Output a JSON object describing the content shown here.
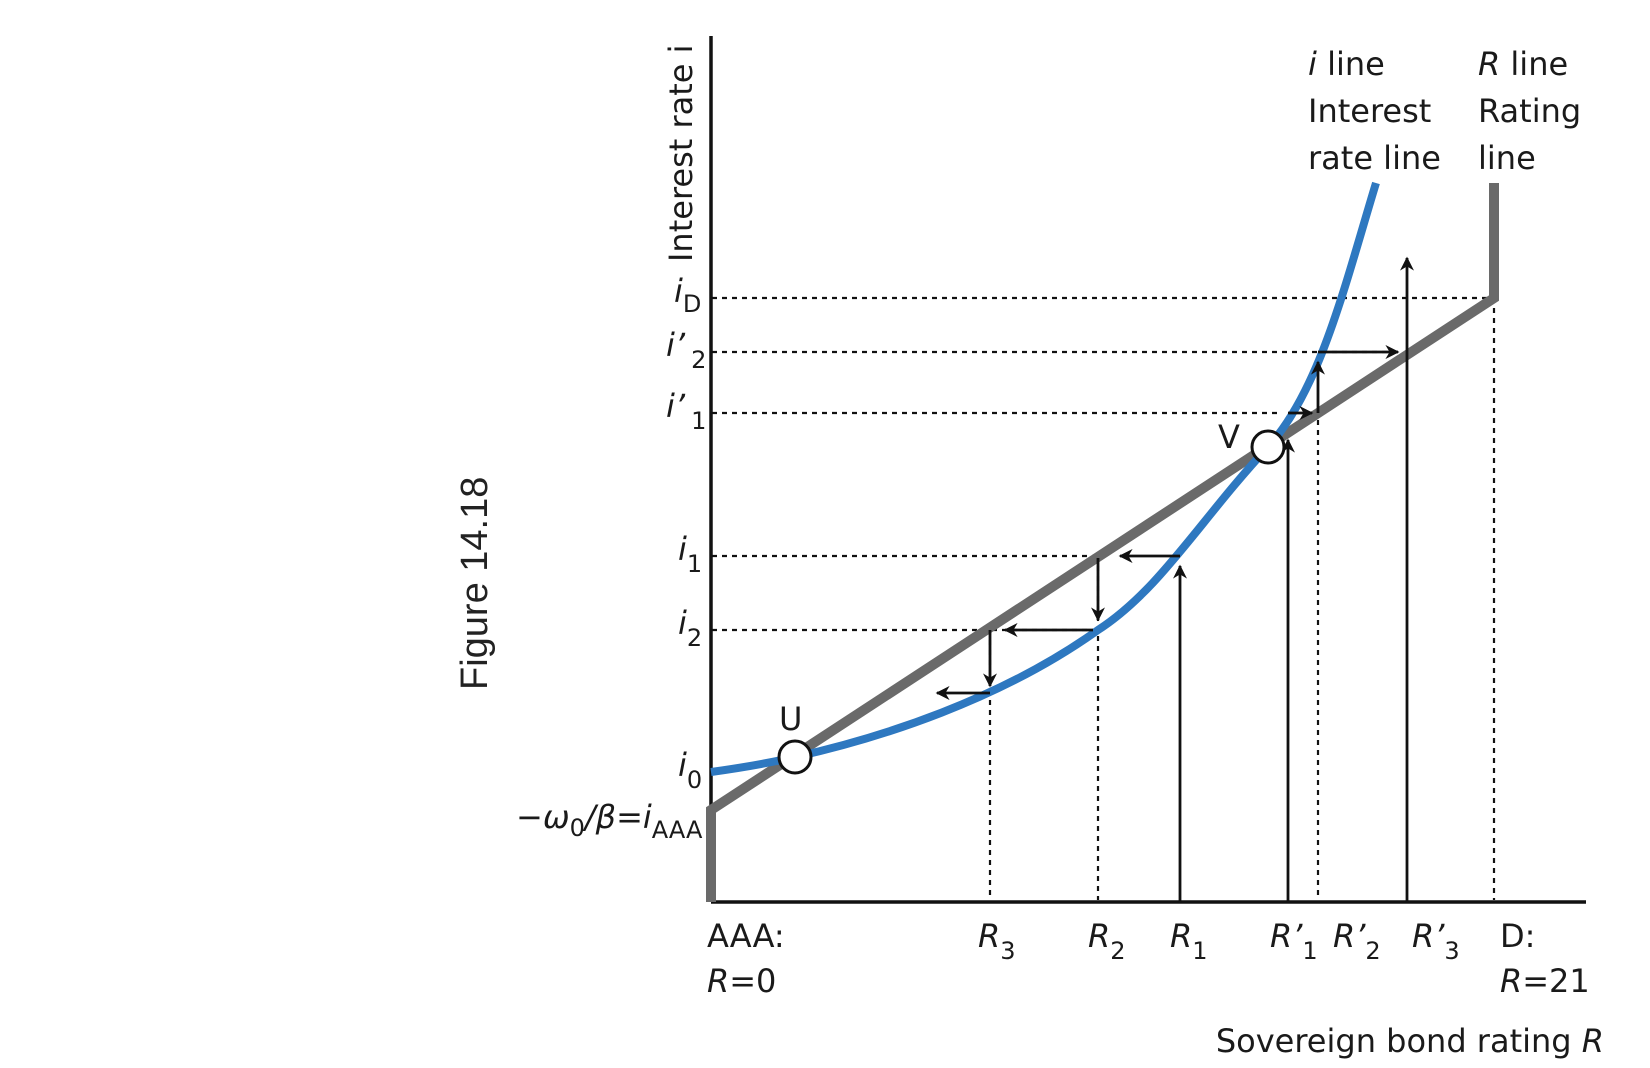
{
  "figure": {
    "caption": "Figure 14.18"
  },
  "axes": {
    "y_label": "Interest rate i",
    "x_label_prefix": "Sovereign bond rating ",
    "x_label_var": "R"
  },
  "legend": {
    "i_line": {
      "var": "i",
      "word": " line",
      "line2": "Interest",
      "line3": "rate line"
    },
    "r_line": {
      "var": "R",
      "word": " line",
      "line2": "Rating",
      "line3": "line"
    }
  },
  "x_ticks": {
    "aaa": {
      "top": "AAA:",
      "bottom_var": "R",
      "bottom_val": "=0"
    },
    "d": {
      "top": "D:",
      "bottom_var": "R",
      "bottom_val": "=21"
    },
    "r3": {
      "var": "R",
      "sub": "3"
    },
    "r2": {
      "var": "R",
      "sub": "2"
    },
    "r1": {
      "var": "R",
      "sub": "1"
    },
    "rp1": {
      "var": "R’",
      "sub": "1"
    },
    "rp2": {
      "var": "R’",
      "sub": "2"
    },
    "rp3": {
      "var": "R’",
      "sub": "3"
    }
  },
  "y_ticks": {
    "iD": {
      "var": "i",
      "sub": "D"
    },
    "ip2": {
      "var": "i’",
      "sub": "2"
    },
    "ip1": {
      "var": "i’",
      "sub": "1"
    },
    "i1": {
      "var": "i",
      "sub": "1"
    },
    "i2": {
      "var": "i",
      "sub": "2"
    },
    "i0": {
      "var": "i",
      "sub": "0"
    },
    "iaaa": {
      "pre": "−ω",
      "pre_sub": "0",
      "mid": "/β=",
      "var": "i",
      "sub": "AAA"
    }
  },
  "points": {
    "u": "U",
    "v": "V"
  },
  "colors": {
    "i_line": "#2e78c0",
    "r_line": "#6a6a6a",
    "axes": "#111111"
  }
}
